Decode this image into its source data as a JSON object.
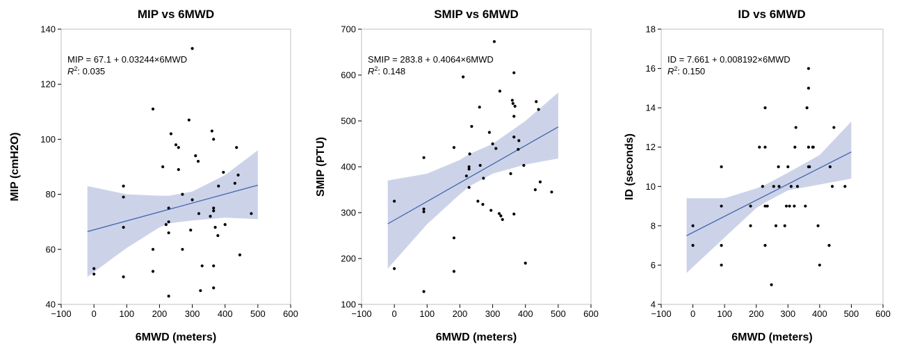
{
  "chart_data": [
    {
      "type": "scatter",
      "title": "MIP vs 6MWD",
      "xlabel": "6MWD (meters)",
      "ylabel": "MIP (cmH2O)",
      "xlim": [
        -100,
        600
      ],
      "ylim": [
        40,
        140
      ],
      "xticks": [
        "−100",
        "0",
        "100",
        "200",
        "300",
        "400",
        "500",
        "600"
      ],
      "yticks": [
        "40",
        "60",
        "80",
        "100",
        "120",
        "140"
      ],
      "equation": "MIP = 67.1 + 0.03244×6MWD",
      "r2_label": "R",
      "r2_value": ": 0.035",
      "regression": {
        "intercept": 67.1,
        "slope": 0.03244,
        "x_range": [
          -20,
          500
        ]
      },
      "band": {
        "x": [
          -20,
          100,
          200,
          230,
          300,
          400,
          500
        ],
        "lower": [
          50,
          60.5,
          68,
          69.5,
          70.5,
          71.5,
          71
        ],
        "upper": [
          83,
          80,
          79.5,
          79.5,
          81,
          87,
          96
        ]
      },
      "points": [
        [
          0,
          53
        ],
        [
          0,
          51
        ],
        [
          90,
          83
        ],
        [
          90,
          79
        ],
        [
          90,
          68
        ],
        [
          90,
          50
        ],
        [
          180,
          111
        ],
        [
          180,
          60
        ],
        [
          180,
          52
        ],
        [
          210,
          90
        ],
        [
          220,
          69
        ],
        [
          228,
          75
        ],
        [
          228,
          70
        ],
        [
          228,
          66
        ],
        [
          228,
          43
        ],
        [
          235,
          102
        ],
        [
          250,
          98
        ],
        [
          258,
          97
        ],
        [
          258,
          89
        ],
        [
          270,
          80
        ],
        [
          270,
          60
        ],
        [
          290,
          107
        ],
        [
          295,
          67
        ],
        [
          300,
          133
        ],
        [
          300,
          78
        ],
        [
          310,
          94
        ],
        [
          318,
          92
        ],
        [
          320,
          73
        ],
        [
          325,
          45
        ],
        [
          330,
          54
        ],
        [
          355,
          72
        ],
        [
          360,
          103
        ],
        [
          365,
          100
        ],
        [
          365,
          75
        ],
        [
          365,
          74
        ],
        [
          365,
          54
        ],
        [
          365,
          46
        ],
        [
          370,
          68
        ],
        [
          378,
          65
        ],
        [
          380,
          83
        ],
        [
          395,
          88
        ],
        [
          400,
          69
        ],
        [
          430,
          84
        ],
        [
          435,
          97
        ],
        [
          440,
          87
        ],
        [
          445,
          58
        ],
        [
          480,
          73
        ]
      ]
    },
    {
      "type": "scatter",
      "title": "SMIP vs 6MWD",
      "xlabel": "6MWD (meters)",
      "ylabel": "SMIP (PTU)",
      "xlim": [
        -100,
        600
      ],
      "ylim": [
        100,
        700
      ],
      "xticks": [
        "−100",
        "0",
        "100",
        "200",
        "300",
        "400",
        "500",
        "600"
      ],
      "yticks": [
        "100",
        "200",
        "300",
        "400",
        "500",
        "600",
        "700"
      ],
      "equation": "SMIP = 283.8 + 0.4064×6MWD",
      "r2_label": "R",
      "r2_value": ": 0.148",
      "regression": {
        "intercept": 283.8,
        "slope": 0.4064,
        "x_range": [
          -20,
          500
        ]
      },
      "band": {
        "x": [
          -20,
          100,
          200,
          230,
          300,
          400,
          500
        ],
        "lower": [
          178,
          275,
          340,
          358,
          385,
          405,
          418
        ],
        "upper": [
          370,
          385,
          415,
          428,
          450,
          500,
          562
        ]
      },
      "points": [
        [
          0,
          325
        ],
        [
          0,
          178
        ],
        [
          90,
          420
        ],
        [
          90,
          308
        ],
        [
          90,
          302
        ],
        [
          90,
          128
        ],
        [
          182,
          442
        ],
        [
          182,
          245
        ],
        [
          182,
          172
        ],
        [
          210,
          596
        ],
        [
          220,
          380
        ],
        [
          228,
          400
        ],
        [
          228,
          395
        ],
        [
          228,
          355
        ],
        [
          230,
          428
        ],
        [
          236,
          488
        ],
        [
          255,
          325
        ],
        [
          260,
          530
        ],
        [
          262,
          403
        ],
        [
          270,
          318
        ],
        [
          272,
          375
        ],
        [
          290,
          475
        ],
        [
          295,
          305
        ],
        [
          300,
          450
        ],
        [
          305,
          673
        ],
        [
          310,
          440
        ],
        [
          320,
          298
        ],
        [
          322,
          565
        ],
        [
          325,
          293
        ],
        [
          330,
          285
        ],
        [
          355,
          385
        ],
        [
          360,
          545
        ],
        [
          362,
          538
        ],
        [
          365,
          605
        ],
        [
          365,
          510
        ],
        [
          365,
          465
        ],
        [
          365,
          297
        ],
        [
          368,
          532
        ],
        [
          378,
          438
        ],
        [
          380,
          457
        ],
        [
          395,
          403
        ],
        [
          400,
          190
        ],
        [
          430,
          350
        ],
        [
          433,
          542
        ],
        [
          440,
          525
        ],
        [
          445,
          367
        ],
        [
          480,
          345
        ]
      ]
    },
    {
      "type": "scatter",
      "title": "ID vs 6MWD",
      "xlabel": "6MWD (meters)",
      "ylabel": "ID (seconds)",
      "xlim": [
        -100,
        600
      ],
      "ylim": [
        4,
        18
      ],
      "xticks": [
        "−100",
        "0",
        "100",
        "200",
        "300",
        "400",
        "500",
        "600"
      ],
      "yticks": [
        "4",
        "6",
        "8",
        "10",
        "12",
        "14",
        "16",
        "18"
      ],
      "equation": "ID = 7.661 + 0.008192×6MWD",
      "r2_label": "R",
      "r2_value": ": 0.150",
      "regression": {
        "intercept": 7.661,
        "slope": 0.008192,
        "x_range": [
          -20,
          500
        ]
      },
      "band": {
        "x": [
          -20,
          100,
          200,
          230,
          300,
          400,
          500
        ],
        "lower": [
          5.6,
          7.4,
          8.9,
          9.2,
          9.8,
          10.1,
          10.4
        ],
        "upper": [
          9.4,
          9.4,
          9.9,
          10.1,
          10.7,
          11.6,
          13.3
        ]
      },
      "points": [
        [
          0,
          8
        ],
        [
          0,
          7
        ],
        [
          90,
          11
        ],
        [
          90,
          9
        ],
        [
          90,
          7
        ],
        [
          90,
          6
        ],
        [
          182,
          9
        ],
        [
          182,
          8
        ],
        [
          210,
          12
        ],
        [
          220,
          10
        ],
        [
          228,
          14
        ],
        [
          228,
          12
        ],
        [
          228,
          9
        ],
        [
          228,
          7
        ],
        [
          235,
          9
        ],
        [
          248,
          5
        ],
        [
          255,
          10
        ],
        [
          262,
          8
        ],
        [
          270,
          11
        ],
        [
          272,
          10
        ],
        [
          290,
          8
        ],
        [
          295,
          9
        ],
        [
          300,
          11
        ],
        [
          305,
          9
        ],
        [
          310,
          10
        ],
        [
          320,
          9
        ],
        [
          322,
          12
        ],
        [
          325,
          13
        ],
        [
          330,
          10
        ],
        [
          355,
          9
        ],
        [
          360,
          14
        ],
        [
          365,
          16
        ],
        [
          365,
          15
        ],
        [
          365,
          12
        ],
        [
          365,
          11
        ],
        [
          368,
          11
        ],
        [
          378,
          12
        ],
        [
          380,
          12
        ],
        [
          395,
          8
        ],
        [
          400,
          6
        ],
        [
          430,
          7
        ],
        [
          433,
          11
        ],
        [
          440,
          10
        ],
        [
          445,
          13
        ],
        [
          480,
          10
        ]
      ]
    }
  ],
  "colors": {
    "regression_line": "#4a6cb0",
    "band_fill": "#c9d1e8",
    "points": "#000000",
    "frame": "#bfbfbf",
    "text": "#000000"
  }
}
